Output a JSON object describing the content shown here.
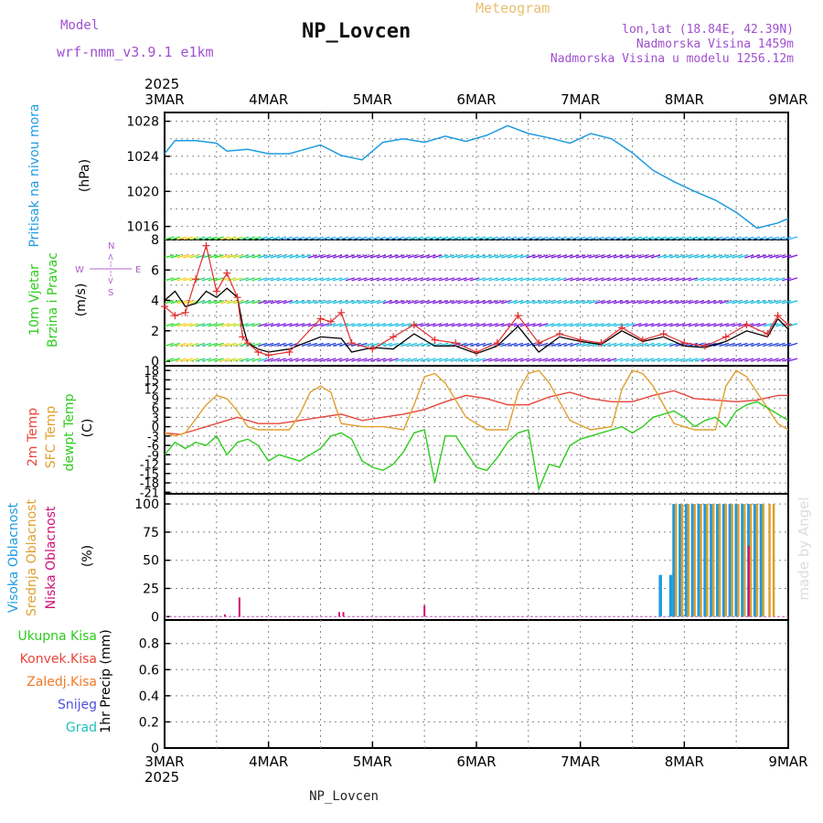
{
  "header": {
    "model_label": "Model",
    "model_name": "wrf-nmm_v3.9.1  e1km",
    "title": "NP_Lovcen",
    "product": "Meteogram",
    "lonlat": "lon,lat (18.84E, 42.39N)",
    "altitude": "Nadmorska Visina 1459m",
    "model_altitude": "Nadmorska Visina u modelu 1256.12m"
  },
  "footer": {
    "station": "NP_Lovcen"
  },
  "credit": "made by Angel",
  "colors": {
    "pressure": "#1e9be0",
    "wind": "#000000",
    "gust": "#e03030",
    "t2m": "#e8453a",
    "sfc": "#e0a030",
    "dewpt": "#2ecc1e",
    "high_cloud": "#1e9be0",
    "mid_cloud": "#e0a030",
    "low_cloud": "#d0107a",
    "ukupna": "#2ecc1e",
    "konvek": "#e8453a",
    "zaledj": "#f07a28",
    "snijeg": "#5050e0",
    "grad": "#20c0c0"
  },
  "axis": {
    "year": "2025",
    "day_labels": [
      "3MAR",
      "4MAR",
      "5MAR",
      "6MAR",
      "7MAR",
      "8MAR",
      "9MAR"
    ]
  },
  "panels": {
    "pressure": {
      "name": "Pritisak na nivou mora",
      "unit": "(hPa)",
      "ticks": [
        "1028",
        "1024",
        "1020",
        "1016"
      ]
    },
    "wind": {
      "name1": "10m Vjetar",
      "name2": "Brzina i Pravac",
      "unit": "(m/s)",
      "ticks": [
        "8",
        "6",
        "4",
        "2",
        "0"
      ],
      "compass_n": "N",
      "compass_s": "S",
      "compass_w": "W",
      "compass_e": "E",
      "compass_dash": "<--|-->"
    },
    "temp": {
      "name1": "2m Temp",
      "name2": "SFC Temp",
      "name3": "dewpt Temp",
      "unit": "(C)",
      "ticks": [
        "18",
        "15",
        "12",
        "9",
        "6",
        "3",
        "0",
        "-3",
        "-6",
        "-9",
        "-12",
        "-15",
        "-18",
        "-21"
      ]
    },
    "cloud": {
      "name1": "Visoka Oblacnost",
      "name2": "Srednja Oblacnost",
      "name3": "Niska Oblacnost",
      "unit": "(%)",
      "ticks": [
        "100",
        "75",
        "50",
        "25",
        "0"
      ]
    },
    "precip": {
      "legend": [
        "Ukupna Kisa",
        "Konvek.Kisa",
        "Zaledj.Kisa",
        "Snijeg",
        "Grad"
      ],
      "unit": "1hr Precip (mm)",
      "ticks": [
        "0.8",
        "0.6",
        "0.4",
        "0.2",
        "0"
      ]
    }
  },
  "chart_data": [
    {
      "type": "line",
      "name": "pressure",
      "ylabel": "Pritisak na nivou mora (hPa)",
      "ylim": [
        1014.5,
        1029
      ],
      "x_unit": "days since 3MAR 00UTC",
      "x": [
        0,
        0.1,
        0.3,
        0.5,
        0.6,
        0.8,
        1,
        1.2,
        1.5,
        1.7,
        1.9,
        2.1,
        2.3,
        2.5,
        2.7,
        2.9,
        3.1,
        3.3,
        3.5,
        3.7,
        3.9,
        4.1,
        4.3,
        4.5,
        4.7,
        4.9,
        5.1,
        5.3,
        5.5,
        5.7,
        5.9,
        6.0
      ],
      "values": [
        1024.3,
        1025.8,
        1025.8,
        1025.5,
        1024.6,
        1024.8,
        1024.3,
        1024.3,
        1025.3,
        1024.1,
        1023.6,
        1025.6,
        1026.0,
        1025.6,
        1026.3,
        1025.7,
        1026.4,
        1027.5,
        1026.6,
        1026.1,
        1025.5,
        1026.6,
        1026.0,
        1024.4,
        1022.4,
        1021.1,
        1020.0,
        1019.0,
        1017.6,
        1015.8,
        1016.4,
        1016.9
      ]
    },
    {
      "type": "line",
      "name": "wind",
      "ylabel": "10m Vjetar Brzina i Pravac (m/s)",
      "ylim": [
        0,
        8
      ],
      "x_unit": "days since 3MAR 00UTC",
      "series": [
        {
          "name": "wind speed",
          "x": [
            0,
            0.1,
            0.2,
            0.3,
            0.4,
            0.5,
            0.6,
            0.7,
            0.75,
            0.8,
            0.9,
            1.0,
            1.2,
            1.5,
            1.7,
            1.8,
            2.0,
            2.2,
            2.4,
            2.6,
            2.8,
            3.0,
            3.2,
            3.4,
            3.6,
            3.8,
            4.0,
            4.2,
            4.4,
            4.6,
            4.8,
            5.0,
            5.2,
            5.4,
            5.6,
            5.8,
            5.9,
            6.0
          ],
          "values": [
            4.0,
            4.6,
            3.6,
            3.8,
            4.6,
            4.2,
            4.8,
            4.2,
            2.4,
            1.2,
            0.8,
            0.6,
            0.8,
            1.6,
            1.5,
            0.6,
            0.9,
            0.8,
            1.8,
            1.0,
            1.0,
            0.5,
            1.0,
            2.3,
            0.6,
            1.6,
            1.3,
            1.1,
            2.0,
            1.3,
            1.6,
            1.0,
            0.9,
            1.3,
            2.0,
            1.6,
            2.8,
            2.1
          ]
        },
        {
          "name": "gusts",
          "x": [
            0,
            0.1,
            0.2,
            0.3,
            0.4,
            0.5,
            0.6,
            0.7,
            0.75,
            0.8,
            0.9,
            1.0,
            1.2,
            1.5,
            1.6,
            1.7,
            1.8,
            2.0,
            2.2,
            2.4,
            2.6,
            2.8,
            3.0,
            3.2,
            3.4,
            3.6,
            3.8,
            4.0,
            4.2,
            4.4,
            4.6,
            4.8,
            5.0,
            5.2,
            5.4,
            5.6,
            5.8,
            5.9,
            6.0
          ],
          "values": [
            3.6,
            3.0,
            3.2,
            5.4,
            7.6,
            4.6,
            5.8,
            4.2,
            1.6,
            1.2,
            0.6,
            0.4,
            0.6,
            2.8,
            2.6,
            3.2,
            1.2,
            0.8,
            1.6,
            2.4,
            1.4,
            1.2,
            0.6,
            1.2,
            3.0,
            1.2,
            1.8,
            1.4,
            1.2,
            2.2,
            1.4,
            1.8,
            1.2,
            1.0,
            1.6,
            2.4,
            1.8,
            3.0,
            2.4
          ]
        }
      ]
    },
    {
      "type": "line",
      "name": "temperature",
      "ylabel": "2m Temp / SFC Temp / dewpt Temp (C)",
      "ylim": [
        -21,
        19
      ],
      "x_unit": "days since 3MAR 00UTC",
      "series": [
        {
          "name": "2m Temp",
          "x": [
            0,
            0.15,
            0.3,
            0.5,
            0.7,
            0.9,
            1.1,
            1.3,
            1.5,
            1.7,
            1.9,
            2.1,
            2.3,
            2.5,
            2.7,
            2.9,
            3.1,
            3.3,
            3.5,
            3.7,
            3.9,
            4.1,
            4.3,
            4.5,
            4.7,
            4.9,
            5.1,
            5.3,
            5.5,
            5.7,
            5.9,
            6.0
          ],
          "values": [
            -2,
            -2.5,
            -1,
            1,
            3,
            1,
            1,
            2,
            3,
            4,
            2,
            3,
            4,
            5.5,
            8,
            10,
            9,
            7,
            7,
            9.5,
            11,
            9,
            8,
            8,
            10,
            11.5,
            9,
            8.5,
            8,
            8.5,
            10,
            10
          ]
        },
        {
          "name": "SFC Temp",
          "x": [
            0,
            0.1,
            0.2,
            0.4,
            0.5,
            0.6,
            0.7,
            0.8,
            0.9,
            1.1,
            1.2,
            1.3,
            1.4,
            1.5,
            1.6,
            1.7,
            1.9,
            2.1,
            2.3,
            2.4,
            2.5,
            2.6,
            2.7,
            2.9,
            3.1,
            3.3,
            3.4,
            3.5,
            3.6,
            3.7,
            3.9,
            4.1,
            4.3,
            4.4,
            4.5,
            4.6,
            4.7,
            4.9,
            5.1,
            5.3,
            5.4,
            5.5,
            5.6,
            5.7,
            5.9,
            6.0
          ],
          "values": [
            -2,
            -3,
            -2,
            7,
            10,
            9,
            5,
            0,
            -1,
            -1,
            -1,
            4,
            11,
            13,
            11,
            1,
            0,
            0,
            -1,
            7,
            16,
            17,
            14,
            3,
            -1,
            -1,
            11,
            17,
            18,
            14,
            2,
            -1,
            0,
            12,
            18,
            17,
            13,
            1,
            -1,
            -1,
            13,
            18,
            16,
            11,
            1,
            -1
          ]
        },
        {
          "name": "dewpt Temp",
          "x": [
            0,
            0.1,
            0.2,
            0.3,
            0.4,
            0.5,
            0.6,
            0.7,
            0.8,
            0.9,
            1.0,
            1.1,
            1.2,
            1.3,
            1.4,
            1.5,
            1.6,
            1.7,
            1.8,
            1.9,
            2.0,
            2.1,
            2.2,
            2.3,
            2.4,
            2.5,
            2.6,
            2.7,
            2.8,
            2.9,
            3.0,
            3.1,
            3.2,
            3.3,
            3.4,
            3.5,
            3.6,
            3.7,
            3.8,
            3.9,
            4.0,
            4.1,
            4.2,
            4.3,
            4.4,
            4.5,
            4.6,
            4.7,
            4.8,
            4.9,
            5.0,
            5.1,
            5.2,
            5.3,
            5.4,
            5.5,
            5.6,
            5.7,
            5.8,
            5.9,
            6.0
          ],
          "values": [
            -9,
            -5,
            -7,
            -5,
            -6,
            -3,
            -9,
            -5,
            -4,
            -6,
            -11,
            -9,
            -10,
            -11,
            -9,
            -7,
            -3,
            -2,
            -4,
            -11,
            -13,
            -14,
            -12,
            -8,
            -2,
            -1,
            -18,
            -3,
            -3,
            -8,
            -13,
            -14,
            -10,
            -5,
            -2,
            -1,
            -20,
            -12,
            -13,
            -6,
            -4,
            -3,
            -2,
            -1,
            0,
            -2,
            0,
            3,
            4,
            5,
            3,
            0,
            2,
            3,
            0,
            5,
            7,
            8,
            6,
            4,
            2
          ]
        }
      ]
    },
    {
      "type": "bar",
      "name": "cloud cover",
      "ylabel": "Visoka / Srednja / Niska Oblacnost (%)",
      "ylim": [
        0,
        100
      ],
      "x_unit": "days since 3MAR 00UTC",
      "series": [
        {
          "name": "Visoka Oblacnost",
          "x": [
            4.77,
            4.87,
            4.9,
            4.96,
            5.02,
            5.08,
            5.14,
            5.2,
            5.26,
            5.32,
            5.38,
            5.44,
            5.5,
            5.56,
            5.62,
            5.68,
            5.74
          ],
          "values": [
            37,
            37,
            100,
            100,
            100,
            100,
            100,
            100,
            100,
            100,
            100,
            100,
            100,
            100,
            100,
            100,
            100
          ]
        },
        {
          "name": "Srednja Oblacnost",
          "x": [
            4.92,
            4.98,
            5.04,
            5.1,
            5.16,
            5.22,
            5.28,
            5.34,
            5.4,
            5.46,
            5.52,
            5.58,
            5.64,
            5.7,
            5.76,
            5.82,
            5.86
          ],
          "values": [
            100,
            100,
            100,
            100,
            100,
            100,
            100,
            100,
            100,
            100,
            100,
            100,
            100,
            100,
            100,
            100,
            100
          ]
        },
        {
          "name": "Niska Oblacnost",
          "x": [
            0.58,
            0.72,
            1.68,
            1.72,
            2.5,
            5.62
          ],
          "values": [
            2,
            17,
            4,
            4,
            10,
            63
          ]
        }
      ]
    },
    {
      "type": "bar",
      "name": "precipitation",
      "ylabel": "1hr Precip (mm)",
      "ylim": [
        0,
        1
      ],
      "x_unit": "days since 3MAR 00UTC",
      "series": []
    }
  ]
}
